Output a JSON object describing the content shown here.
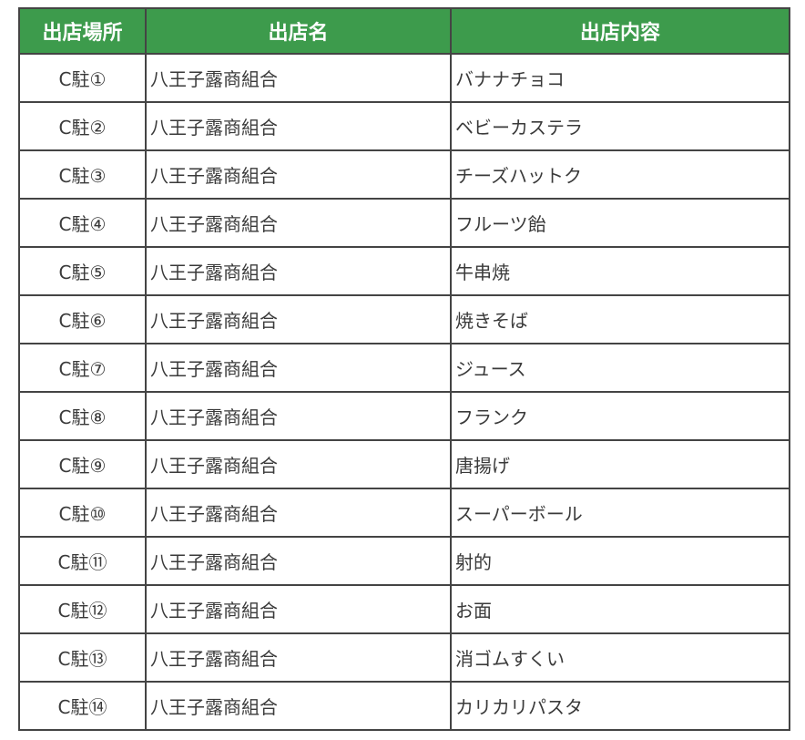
{
  "table": {
    "headers": [
      "出店場所",
      "出店名",
      "出店内容"
    ],
    "header_color": "#3d9b4c",
    "rows": [
      {
        "location": "C駐①",
        "name": "八王子露商組合",
        "content": "バナナチョコ"
      },
      {
        "location": "C駐②",
        "name": "八王子露商組合",
        "content": "ベビーカステラ"
      },
      {
        "location": "C駐③",
        "name": "八王子露商組合",
        "content": "チーズハットク"
      },
      {
        "location": "C駐④",
        "name": "八王子露商組合",
        "content": "フルーツ飴"
      },
      {
        "location": "C駐⑤",
        "name": "八王子露商組合",
        "content": "牛串焼"
      },
      {
        "location": "C駐⑥",
        "name": "八王子露商組合",
        "content": "焼きそば"
      },
      {
        "location": "C駐⑦",
        "name": "八王子露商組合",
        "content": "ジュース"
      },
      {
        "location": "C駐⑧",
        "name": "八王子露商組合",
        "content": "フランク"
      },
      {
        "location": "C駐⑨",
        "name": "八王子露商組合",
        "content": "唐揚げ"
      },
      {
        "location": "C駐⑩",
        "name": "八王子露商組合",
        "content": "スーパーボール"
      },
      {
        "location": "C駐⑪",
        "name": "八王子露商組合",
        "content": "射的"
      },
      {
        "location": "C駐⑫",
        "name": "八王子露商組合",
        "content": "お面"
      },
      {
        "location": "C駐⑬",
        "name": "八王子露商組合",
        "content": "消ゴムすくい"
      },
      {
        "location": "C駐⑭",
        "name": "八王子露商組合",
        "content": "カリカリパスタ"
      }
    ]
  }
}
